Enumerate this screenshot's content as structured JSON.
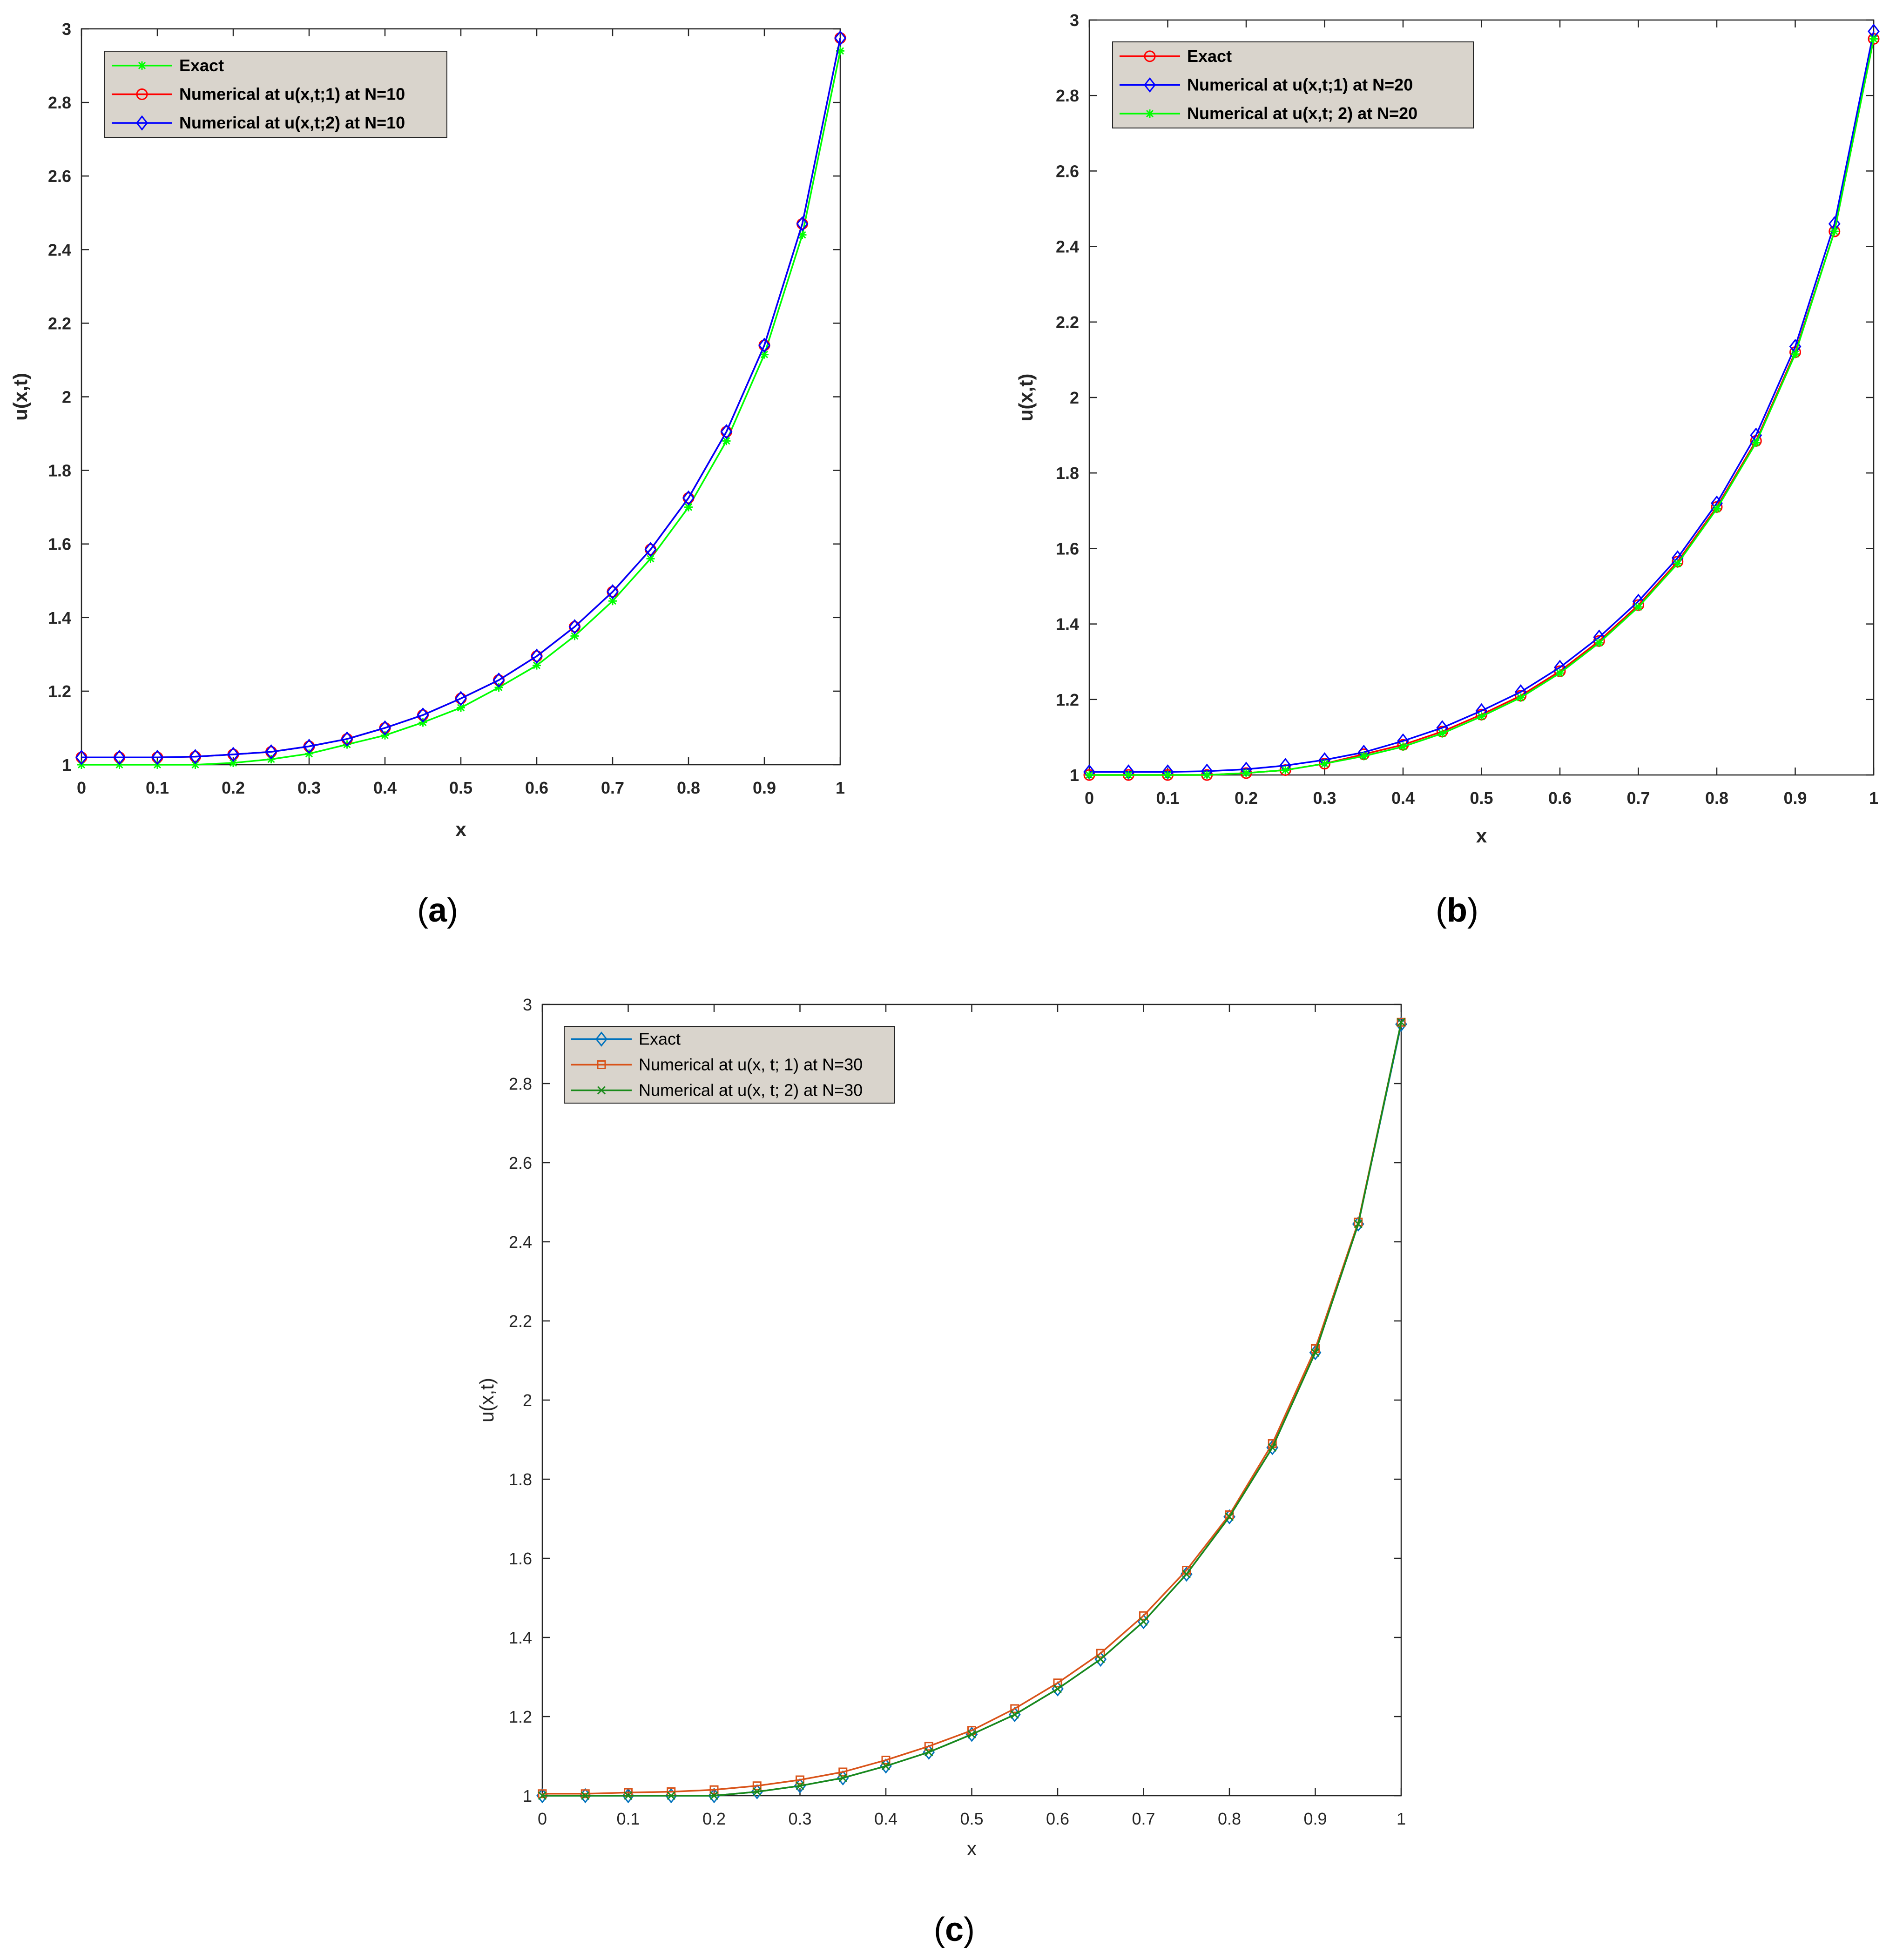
{
  "figure": {
    "panels": [
      {
        "caption_label": "a",
        "legend_location": "top-left",
        "bold_text": true
      },
      {
        "caption_label": "b",
        "legend_location": "top-left",
        "bold_text": true
      },
      {
        "caption_label": "c",
        "legend_location": "top-left",
        "bold_text": false
      }
    ]
  },
  "chart_data": [
    {
      "type": "line",
      "xlabel": "x",
      "ylabel": "u(x,t)",
      "xlim": [
        0,
        1
      ],
      "ylim": [
        1,
        3
      ],
      "grid": false,
      "legend": "top-left",
      "x_ticks": [
        "0",
        "0.1",
        "0.2",
        "0.3",
        "0.4",
        "0.5",
        "0.6",
        "0.7",
        "0.8",
        "0.9",
        "1"
      ],
      "y_ticks": [
        "1",
        "1.2",
        "1.4",
        "1.6",
        "1.8",
        "2",
        "2.2",
        "2.4",
        "2.6",
        "2.8",
        "3"
      ],
      "x": [
        0,
        0.05,
        0.1,
        0.15,
        0.2,
        0.25,
        0.3,
        0.35,
        0.4,
        0.45,
        0.5,
        0.55,
        0.6,
        0.65,
        0.7,
        0.75,
        0.8,
        0.85,
        0.9,
        0.95,
        1
      ],
      "series": [
        {
          "name": "Exact",
          "color": "#00ff00",
          "marker": "asterisk",
          "values": [
            1.0,
            1.0,
            1.0,
            1.0,
            1.005,
            1.015,
            1.03,
            1.055,
            1.08,
            1.115,
            1.155,
            1.21,
            1.27,
            1.35,
            1.445,
            1.56,
            1.7,
            1.88,
            2.115,
            2.44,
            2.94
          ]
        },
        {
          "name": "Numerical at u(x,t;1) at N=10",
          "color": "#ff0000",
          "marker": "circle",
          "values": [
            1.02,
            1.02,
            1.02,
            1.022,
            1.028,
            1.035,
            1.05,
            1.07,
            1.1,
            1.135,
            1.18,
            1.23,
            1.295,
            1.375,
            1.47,
            1.585,
            1.725,
            1.905,
            2.14,
            2.47,
            2.975
          ]
        },
        {
          "name": "Numerical at u(x,t;2) at N=10",
          "color": "#0000ff",
          "marker": "diamond",
          "values": [
            1.02,
            1.02,
            1.02,
            1.022,
            1.028,
            1.035,
            1.05,
            1.07,
            1.1,
            1.135,
            1.18,
            1.23,
            1.295,
            1.375,
            1.47,
            1.585,
            1.725,
            1.905,
            2.14,
            2.47,
            2.975
          ]
        }
      ]
    },
    {
      "type": "line",
      "xlabel": "x",
      "ylabel": "u(x,t)",
      "xlim": [
        0,
        1
      ],
      "ylim": [
        1,
        3
      ],
      "grid": false,
      "legend": "top-left",
      "x_ticks": [
        "0",
        "0.1",
        "0.2",
        "0.3",
        "0.4",
        "0.5",
        "0.6",
        "0.7",
        "0.8",
        "0.9",
        "1"
      ],
      "y_ticks": [
        "1",
        "1.2",
        "1.4",
        "1.6",
        "1.8",
        "2",
        "2.2",
        "2.4",
        "2.6",
        "2.8",
        "3"
      ],
      "x": [
        0,
        0.05,
        0.1,
        0.15,
        0.2,
        0.25,
        0.3,
        0.35,
        0.4,
        0.45,
        0.5,
        0.55,
        0.6,
        0.65,
        0.7,
        0.75,
        0.8,
        0.85,
        0.9,
        0.95,
        1
      ],
      "series": [
        {
          "name": "Exact",
          "color": "#ff0000",
          "marker": "circle",
          "values": [
            1.0,
            1.0,
            1.0,
            1.0,
            1.005,
            1.013,
            1.03,
            1.055,
            1.08,
            1.115,
            1.16,
            1.21,
            1.275,
            1.355,
            1.45,
            1.565,
            1.71,
            1.885,
            2.12,
            2.44,
            2.95
          ]
        },
        {
          "name": "Numerical at u(x,t;1) at N=20",
          "color": "#0000ff",
          "marker": "diamond",
          "values": [
            1.008,
            1.008,
            1.008,
            1.01,
            1.015,
            1.025,
            1.04,
            1.06,
            1.09,
            1.125,
            1.17,
            1.22,
            1.285,
            1.365,
            1.46,
            1.575,
            1.72,
            1.9,
            2.135,
            2.46,
            2.97
          ]
        },
        {
          "name": "Numerical at u(x,t; 2) at N=20",
          "color": "#00ff00",
          "marker": "asterisk",
          "values": [
            1.0,
            1.0,
            1.0,
            1.0,
            1.005,
            1.013,
            1.03,
            1.05,
            1.075,
            1.11,
            1.155,
            1.205,
            1.27,
            1.35,
            1.445,
            1.56,
            1.705,
            1.88,
            2.115,
            2.44,
            2.95
          ]
        }
      ]
    },
    {
      "type": "line",
      "xlabel": "x",
      "ylabel": "u(x,t)",
      "xlim": [
        0,
        1
      ],
      "ylim": [
        1,
        3
      ],
      "grid": false,
      "legend": "top-left",
      "x_ticks": [
        "0",
        "0.1",
        "0.2",
        "0.3",
        "0.4",
        "0.5",
        "0.6",
        "0.7",
        "0.8",
        "0.9",
        "1"
      ],
      "y_ticks": [
        "1",
        "1.2",
        "1.4",
        "1.6",
        "1.8",
        "2",
        "2.2",
        "2.4",
        "2.6",
        "2.8",
        "3"
      ],
      "x": [
        0,
        0.05,
        0.1,
        0.15,
        0.2,
        0.25,
        0.3,
        0.35,
        0.4,
        0.45,
        0.5,
        0.55,
        0.6,
        0.65,
        0.7,
        0.75,
        0.8,
        0.85,
        0.9,
        0.95,
        1
      ],
      "series": [
        {
          "name": "Exact",
          "color": "#0072bd",
          "marker": "diamond",
          "values": [
            1.0,
            1.0,
            1.0,
            1.0,
            1.0,
            1.01,
            1.025,
            1.045,
            1.075,
            1.11,
            1.155,
            1.205,
            1.27,
            1.345,
            1.44,
            1.56,
            1.705,
            1.88,
            2.12,
            2.445,
            2.95
          ]
        },
        {
          "name": "Numerical at u(x, t; 1) at N=30",
          "color": "#d95319",
          "marker": "square",
          "values": [
            1.005,
            1.005,
            1.008,
            1.01,
            1.015,
            1.025,
            1.04,
            1.06,
            1.09,
            1.125,
            1.165,
            1.22,
            1.285,
            1.36,
            1.455,
            1.57,
            1.71,
            1.89,
            2.13,
            2.45,
            2.955
          ]
        },
        {
          "name": "Numerical at u(x, t; 2) at N=30",
          "color": "#1a8a1a",
          "marker": "cross",
          "values": [
            1.0,
            1.0,
            1.0,
            1.0,
            1.0,
            1.01,
            1.025,
            1.045,
            1.075,
            1.11,
            1.155,
            1.205,
            1.27,
            1.345,
            1.44,
            1.56,
            1.705,
            1.88,
            2.12,
            2.445,
            2.955
          ]
        }
      ]
    }
  ]
}
